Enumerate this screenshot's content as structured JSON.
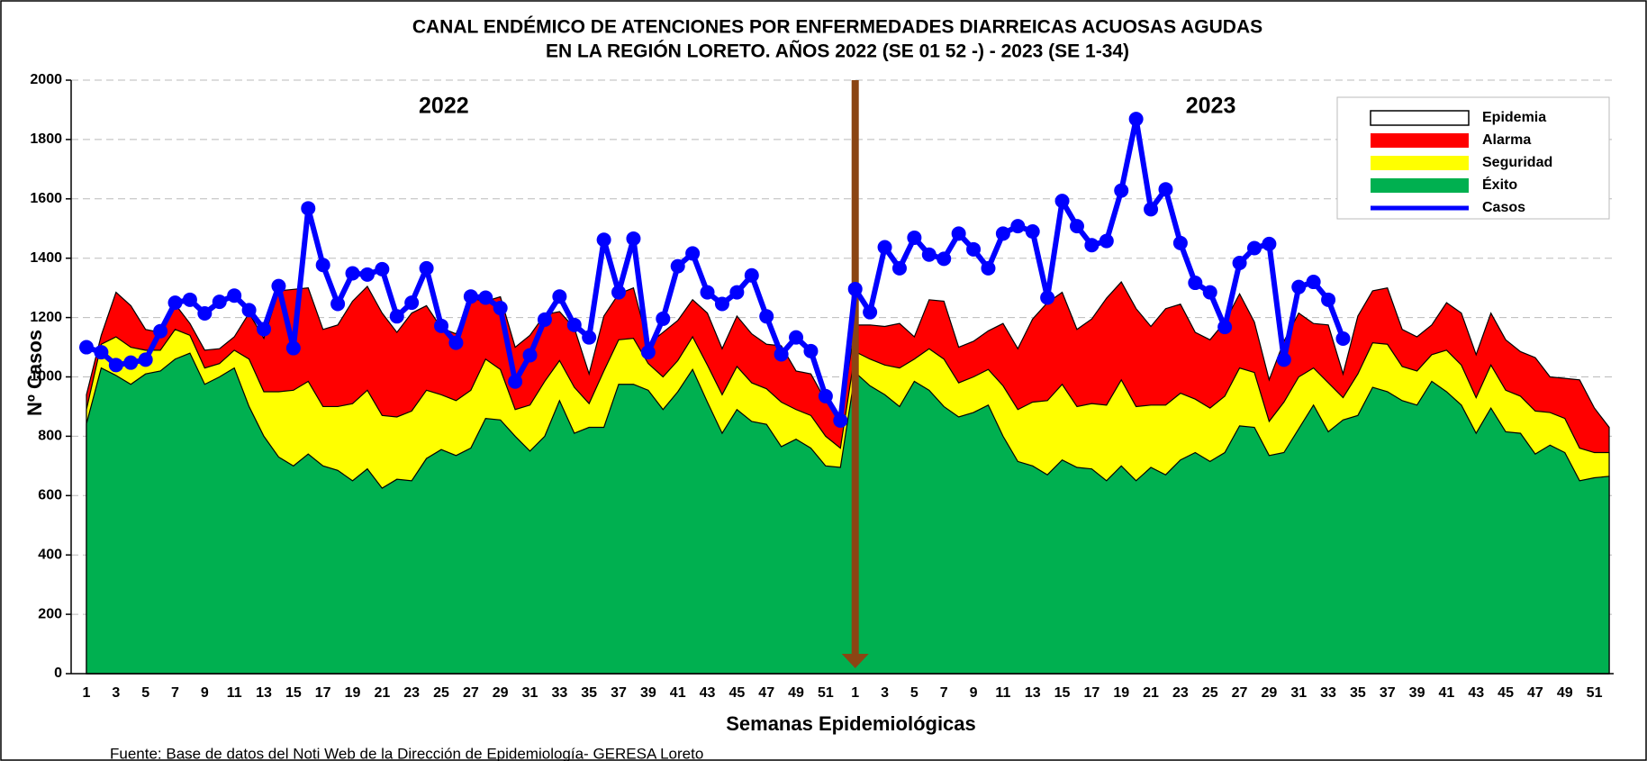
{
  "chart_data": {
    "type": "area",
    "title": "CANAL ENDÉMICO DE ATENCIONES POR ENFERMEDADES DIARREICAS ACUOSAS AGUDAS",
    "subtitle": "EN LA REGIÓN LORETO.  AÑOS 2022 (SE 01 52 -) - 2023 (SE 1-34)",
    "y_label": "Nº Casos",
    "x_label": "Semanas Epidemiológicas",
    "annotations": [
      "2022",
      "2023"
    ],
    "source": "Fuente: Base de datos del Noti Web de la Dirección de Epidemiología- GERESA Loreto",
    "categories": [
      "1",
      null,
      "3",
      null,
      "5",
      null,
      "7",
      null,
      "9",
      null,
      "11",
      null,
      "13",
      null,
      "15",
      null,
      "17",
      null,
      "19",
      null,
      "21",
      null,
      "23",
      null,
      "25",
      null,
      "27",
      null,
      "29",
      null,
      "31",
      null,
      "33",
      null,
      "35",
      null,
      "37",
      null,
      "39",
      null,
      "41",
      null,
      "43",
      null,
      "45",
      null,
      "47",
      null,
      "49",
      null,
      "51",
      null,
      "1",
      null,
      "3",
      null,
      "5",
      null,
      "7",
      null,
      "9",
      null,
      "11",
      null,
      "13",
      null,
      "15",
      null,
      "17",
      null,
      "19",
      null,
      "21",
      null,
      "23",
      null,
      "25",
      null,
      "27",
      null,
      "29",
      null,
      "31",
      null,
      "33",
      null,
      "35",
      null,
      "37",
      null,
      "39",
      null,
      "41",
      null,
      "43",
      null,
      "45",
      null,
      "47",
      null,
      "49",
      null,
      "51",
      null
    ],
    "ylim": [
      0,
      2000
    ],
    "yticks": [
      0,
      200,
      400,
      600,
      800,
      1000,
      1200,
      1400,
      1600,
      1800,
      2000
    ],
    "grid": true,
    "legend": "upper right",
    "series": [
      {
        "name": "Epidemia",
        "color": "#ffffff",
        "style": "area"
      },
      {
        "name": "Alarma",
        "color": "#ff0000",
        "style": "area",
        "values": [
          940,
          1140,
          1285,
          1240,
          1160,
          1150,
          1245,
          1180,
          1090,
          1095,
          1135,
          1215,
          1130,
          1290,
          1295,
          1300,
          1160,
          1175,
          1255,
          1305,
          1215,
          1150,
          1215,
          1240,
          1165,
          1145,
          1265,
          1255,
          1270,
          1100,
          1140,
          1210,
          1220,
          1165,
          1010,
          1205,
          1280,
          1300,
          1110,
          1150,
          1190,
          1260,
          1215,
          1095,
          1205,
          1145,
          1110,
          1105,
          1020,
          1010,
          920,
          850,
          1175,
          1175,
          1170,
          1180,
          1135,
          1260,
          1255,
          1100,
          1120,
          1155,
          1180,
          1095,
          1195,
          1250,
          1285,
          1160,
          1195,
          1265,
          1320,
          1230,
          1170,
          1230,
          1245,
          1150,
          1125,
          1185,
          1280,
          1185,
          990,
          1120,
          1215,
          1180,
          1175,
          1010,
          1205,
          1290,
          1300,
          1160,
          1135,
          1175,
          1250,
          1215,
          1075,
          1215,
          1125,
          1085,
          1065,
          1000,
          995,
          990,
          895,
          830
        ]
      },
      {
        "name": "Seguridad",
        "color": "#ffff00",
        "style": "area",
        "values": [
          890,
          1110,
          1135,
          1100,
          1090,
          1090,
          1160,
          1140,
          1030,
          1045,
          1090,
          1060,
          950,
          950,
          955,
          985,
          900,
          900,
          910,
          955,
          870,
          865,
          885,
          955,
          940,
          920,
          955,
          1060,
          1025,
          890,
          905,
          985,
          1055,
          965,
          910,
          1020,
          1125,
          1130,
          1045,
          1000,
          1055,
          1135,
          1040,
          940,
          1035,
          980,
          960,
          915,
          890,
          870,
          800,
          760,
          1085,
          1060,
          1040,
          1030,
          1060,
          1095,
          1060,
          980,
          1000,
          1025,
          970,
          890,
          915,
          920,
          975,
          900,
          910,
          905,
          990,
          900,
          905,
          905,
          945,
          925,
          895,
          935,
          1030,
          1015,
          850,
          915,
          1000,
          1030,
          980,
          930,
          1010,
          1115,
          1110,
          1035,
          1020,
          1075,
          1090,
          1040,
          930,
          1040,
          955,
          935,
          885,
          880,
          860,
          760,
          745,
          745
        ]
      },
      {
        "name": "Éxito",
        "color": "#00b050",
        "style": "area",
        "values": [
          842,
          1030,
          1005,
          975,
          1010,
          1020,
          1060,
          1080,
          975,
          1000,
          1030,
          900,
          800,
          730,
          700,
          740,
          700,
          685,
          650,
          690,
          625,
          655,
          650,
          725,
          755,
          735,
          760,
          860,
          855,
          800,
          750,
          800,
          920,
          810,
          830,
          830,
          975,
          975,
          955,
          890,
          950,
          1025,
          915,
          810,
          890,
          850,
          840,
          765,
          790,
          760,
          700,
          695,
          1015,
          970,
          940,
          900,
          985,
          955,
          900,
          865,
          880,
          905,
          800,
          715,
          700,
          670,
          720,
          695,
          690,
          650,
          700,
          650,
          695,
          670,
          720,
          745,
          715,
          745,
          835,
          830,
          735,
          745,
          825,
          905,
          815,
          855,
          870,
          965,
          950,
          920,
          905,
          985,
          950,
          905,
          810,
          895,
          815,
          810,
          740,
          770,
          745,
          650,
          660,
          665
        ]
      },
      {
        "name": "Casos",
        "color": "#0000ff",
        "style": "line",
        "values": [
          1100,
          1083,
          1040,
          1048,
          1058,
          1154,
          1250,
          1260,
          1214,
          1253,
          1274,
          1225,
          1161,
          1306,
          1097,
          1568,
          1377,
          1246,
          1349,
          1345,
          1363,
          1204,
          1250,
          1366,
          1172,
          1115,
          1271,
          1267,
          1232,
          984,
          1073,
          1193,
          1271,
          1175,
          1133,
          1462,
          1285,
          1466,
          1083,
          1196,
          1373,
          1416,
          1285,
          1246,
          1285,
          1342,
          1204,
          1076,
          1133,
          1087,
          935,
          853,
          1296,
          1218,
          1437,
          1366,
          1469,
          1412,
          1398,
          1483,
          1430,
          1366,
          1483,
          1508,
          1490,
          1267,
          1593,
          1508,
          1444,
          1458,
          1628,
          1869,
          1565,
          1632,
          1451,
          1317,
          1285,
          1168,
          1384,
          1434,
          1448,
          1058,
          1303,
          1320,
          1260,
          1129,
          null,
          null,
          null,
          null,
          null,
          null,
          null,
          null,
          null,
          null,
          null,
          null,
          null,
          null,
          null,
          null,
          null,
          null
        ]
      }
    ]
  }
}
